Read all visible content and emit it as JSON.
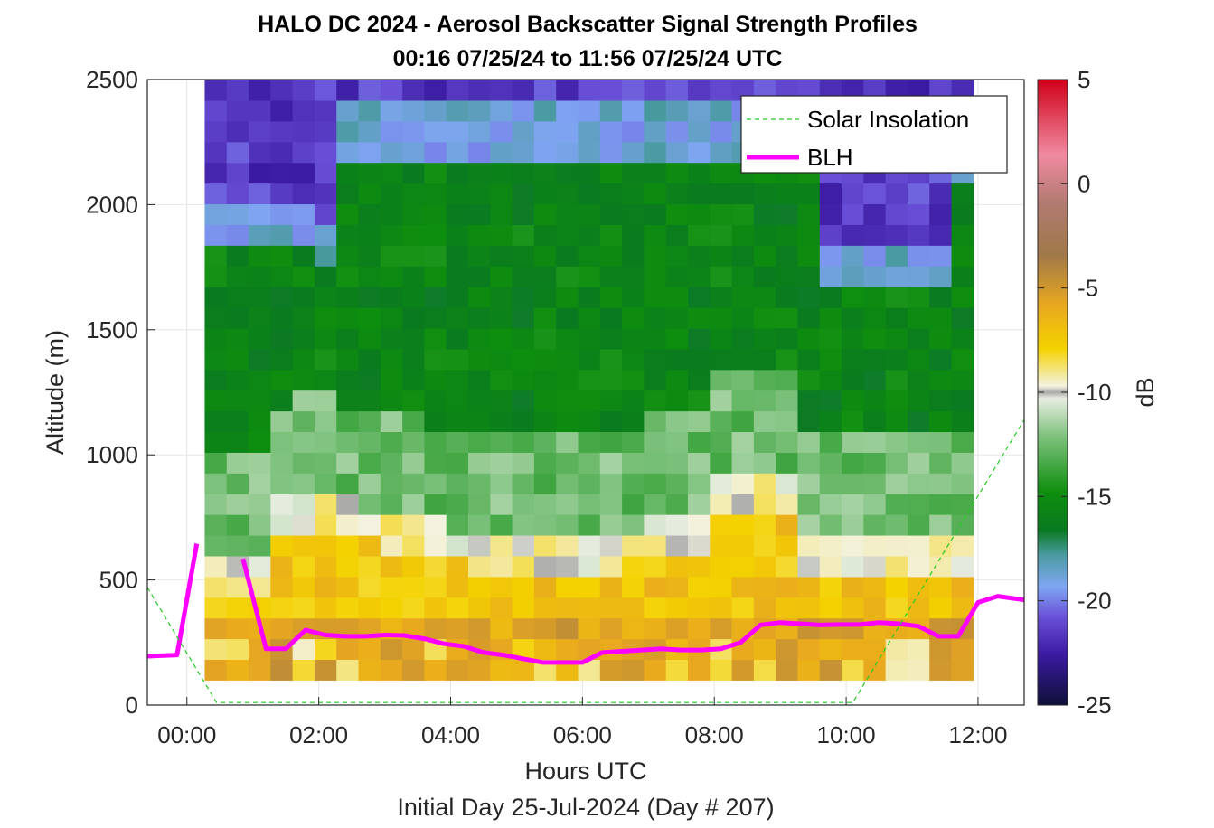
{
  "figure": {
    "title_line1": "HALO DC 2024 - Aerosol Backscatter Signal Strength Profiles",
    "title_line2": "00:16 07/25/24 to 11:56 07/25/24  UTC",
    "xlabel": "Hours UTC",
    "subcaption": "Initial Day 25-Jul-2024 (Day # 207)",
    "ylabel": "Altitude (m)",
    "colorbar_label": "dB"
  },
  "legend": {
    "solar_label": "Solar Insolation",
    "blh_label": "BLH",
    "placement": "top-right"
  },
  "colors": {
    "blh": "#ff00ff",
    "solar": "#22cc22"
  },
  "colorbar": {
    "ticks": [
      "5",
      "0",
      "-5",
      "-10",
      "-15",
      "-20",
      "-25"
    ],
    "range": [
      -25,
      5
    ]
  },
  "chart_data": {
    "type": "heatmap",
    "x_axis": {
      "range_hours": [
        -0.6,
        12.7
      ],
      "ticks": [
        "00:00",
        "02:00",
        "04:00",
        "06:00",
        "08:00",
        "10:00",
        "12:00"
      ]
    },
    "y_axis": {
      "range": [
        0,
        2500
      ],
      "ticks": [
        "0",
        "500",
        "1000",
        "1500",
        "2000",
        "2500"
      ]
    },
    "grid": true,
    "heatmap": {
      "x_start_hours": 0.27,
      "x_end_hours": 11.93,
      "n_columns": 35,
      "altitude_start_m": 100,
      "altitude_end_m": 2500,
      "n_rows": 29,
      "description_ranges": [
        {
          "altitude_m": [
            100,
            300
          ],
          "approx_db": -6
        },
        {
          "altitude_m": [
            300,
            750
          ],
          "approx_db": -7
        },
        {
          "altitude_m": [
            750,
            1500
          ],
          "approx_db": -13
        },
        {
          "altitude_m": [
            1500,
            2100
          ],
          "approx_db": -16
        },
        {
          "altitude_m": [
            2100,
            2500
          ],
          "approx_db": -22
        }
      ]
    },
    "series": [
      {
        "name": "BLH",
        "x_hours": [
          -0.6,
          -0.15,
          0.15,
          0.5,
          0.85,
          1.2,
          1.5,
          1.8,
          2.1,
          2.4,
          2.7,
          3.0,
          3.3,
          3.6,
          3.9,
          4.2,
          4.5,
          4.8,
          5.1,
          5.4,
          5.7,
          6.0,
          6.3,
          6.6,
          6.9,
          7.2,
          7.5,
          7.8,
          8.1,
          8.4,
          8.7,
          9.0,
          9.3,
          9.6,
          9.9,
          10.2,
          10.5,
          10.8,
          11.1,
          11.4,
          11.7,
          12.0,
          12.3,
          12.7
        ],
        "y_m": [
          195,
          200,
          645,
          null,
          585,
          225,
          225,
          300,
          280,
          275,
          275,
          280,
          278,
          265,
          245,
          235,
          210,
          200,
          185,
          170,
          170,
          170,
          210,
          215,
          220,
          225,
          220,
          220,
          225,
          250,
          320,
          330,
          325,
          320,
          322,
          322,
          330,
          325,
          315,
          275,
          275,
          410,
          435,
          420
        ]
      },
      {
        "name": "Solar Insolation",
        "x_hours": [
          -0.6,
          0.45,
          10.1,
          12.7
        ],
        "y_m": [
          470,
          10,
          10,
          1140
        ]
      }
    ]
  }
}
